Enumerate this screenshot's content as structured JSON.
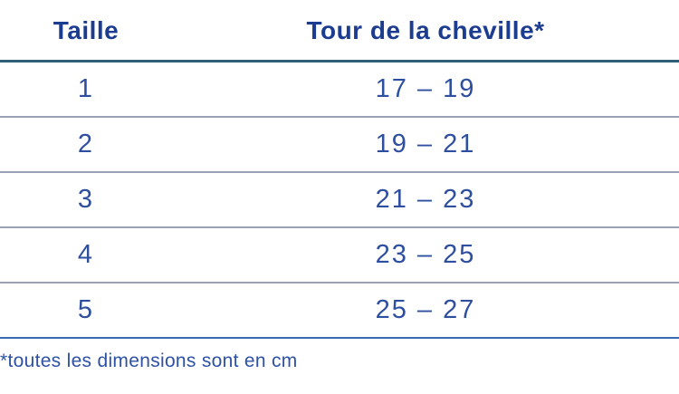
{
  "chart_data": {
    "type": "table",
    "columns": [
      "Taille",
      "Tour de la cheville*"
    ],
    "rows": [
      [
        "1",
        "17 – 19"
      ],
      [
        "2",
        "19 – 21"
      ],
      [
        "3",
        "21 – 23"
      ],
      [
        "4",
        "23 – 25"
      ],
      [
        "5",
        "25 – 27"
      ]
    ],
    "footnote": "*toutes les dimensions sont en cm"
  },
  "colors": {
    "header_text": "#1c3c90",
    "cell_text": "#2e4fa0",
    "footnote_text": "#2d51a5",
    "header_rule": "#2e6078",
    "row_rule": "#99a2b5",
    "bottom_rule": "#3a6cb3",
    "background": "#ffffff"
  }
}
